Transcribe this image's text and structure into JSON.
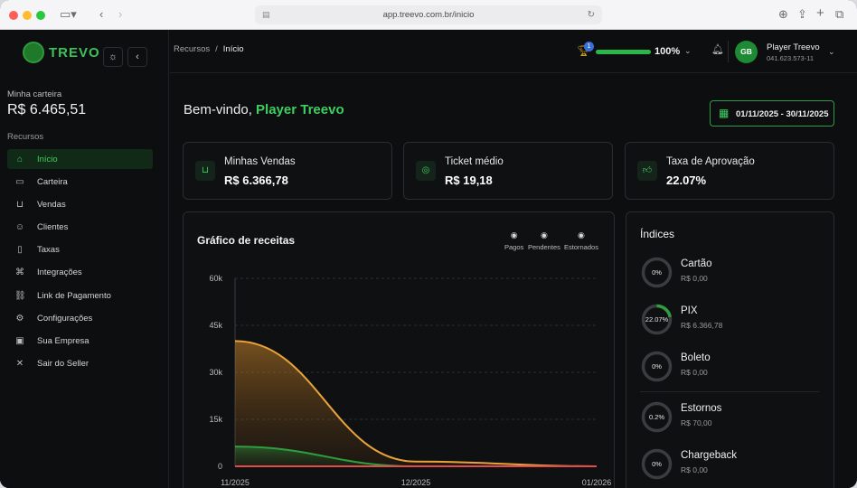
{
  "browser": {
    "url": "app.treevo.com.br/inicio"
  },
  "sidebar": {
    "logo_text": "TREVO",
    "wallet_label": "Minha carteira",
    "wallet_value": "R$ 6.465,51",
    "section_label": "Recursos",
    "items": [
      {
        "label": "Início",
        "icon": "home-icon",
        "active": true
      },
      {
        "label": "Carteira",
        "icon": "wallet-icon",
        "active": false
      },
      {
        "label": "Vendas",
        "icon": "cart-icon",
        "active": false
      },
      {
        "label": "Clientes",
        "icon": "users-icon",
        "active": false
      },
      {
        "label": "Taxas",
        "icon": "receipt-icon",
        "active": false
      },
      {
        "label": "Integrações",
        "icon": "puzzle-icon",
        "active": false
      },
      {
        "label": "Link de Pagamento",
        "icon": "link-icon",
        "active": false
      },
      {
        "label": "Configurações",
        "icon": "gear-icon",
        "active": false
      },
      {
        "label": "Sua Empresa",
        "icon": "briefcase-icon",
        "active": false
      },
      {
        "label": "Sair do Seller",
        "icon": "close-icon",
        "active": false
      }
    ]
  },
  "header": {
    "breadcrumb_root": "Recursos",
    "breadcrumb_sep": "/",
    "breadcrumb_current": "Início",
    "trophy_badge": "1",
    "progress_percent": "100%",
    "progress_fraction": 1.0,
    "user_initials": "GB",
    "user_name": "Player Treevo",
    "user_doc": "041.623.573-11"
  },
  "main": {
    "welcome_prefix": "Bem-vindo,",
    "welcome_name": "Player Treevo",
    "date_range": "01/11/2025 - 30/11/2025",
    "cards": [
      {
        "title": "Minhas Vendas",
        "value": "R$ 6.366,78",
        "icon": "cart-icon"
      },
      {
        "title": "Ticket médio",
        "value": "R$ 19,18",
        "icon": "badge-icon"
      },
      {
        "title": "Taxa de Aprovação",
        "value": "22.07%",
        "icon": "thumbs-up-icon"
      }
    ]
  },
  "chart_panel": {
    "title": "Gráfico de receitas",
    "legend": [
      "Pagos",
      "Pendentes",
      "Estornados"
    ]
  },
  "chart_data": {
    "type": "area",
    "title": "Gráfico de receitas",
    "x": [
      "11/2025",
      "12/2025",
      "01/2026"
    ],
    "yticks": [
      "0",
      "15k",
      "30k",
      "45k",
      "60k"
    ],
    "ylim": [
      0,
      60000
    ],
    "grid": true,
    "series": [
      {
        "name": "Pagos",
        "color": "#e8a33a",
        "values": [
          40000,
          1500,
          0
        ]
      },
      {
        "name": "Pendentes",
        "color": "#2e9e3f",
        "values": [
          6300,
          0,
          0
        ]
      },
      {
        "name": "Estornados",
        "color": "#e04b4b",
        "values": [
          0,
          0,
          0
        ]
      }
    ]
  },
  "indices": {
    "title": "Índices",
    "items": [
      {
        "name": "Cartão",
        "value": "R$ 0,00",
        "pct_label": "0%",
        "fraction": 0
      },
      {
        "name": "PIX",
        "value": "R$ 6.366,78",
        "pct_label": "22.07%",
        "fraction": 0.2207
      },
      {
        "name": "Boleto",
        "value": "R$ 0,00",
        "pct_label": "0%",
        "fraction": 0
      },
      {
        "name": "Estornos",
        "value": "R$ 70,00",
        "pct_label": "0.2%",
        "fraction": 0.002
      },
      {
        "name": "Chargeback",
        "value": "R$ 0,00",
        "pct_label": "0%",
        "fraction": 0
      }
    ]
  }
}
